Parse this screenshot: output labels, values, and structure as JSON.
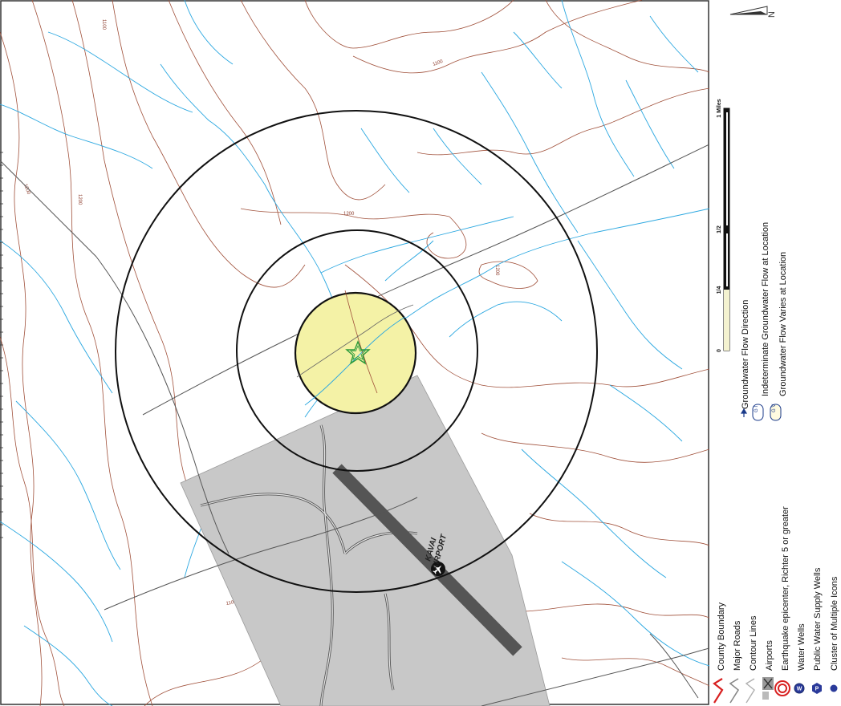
{
  "map": {
    "airport_label_line1": "KAVAI",
    "airport_label_line2": "AIRPORT",
    "contour_labels": [
      "1100",
      "1100",
      "1200",
      "1200",
      "1200",
      "1200",
      "1100"
    ],
    "colors": {
      "contour": "#a0503a",
      "stream": "#2aa7e0",
      "road": "#555555",
      "airport_fill": "#c8c8c8",
      "runway": "#555555",
      "site_fill": "#f4f2a6",
      "ring": "#111111",
      "site_star": "#2a9a3a"
    },
    "icons": [
      "north-arrow-icon",
      "airport-icon",
      "site-star-icon"
    ]
  },
  "scale_bar": {
    "ticks": [
      "0",
      "1/4",
      "1/2",
      "1 Miles"
    ],
    "fractions": [
      0,
      0.25,
      0.5,
      1
    ]
  },
  "flow_legend": {
    "items": [
      {
        "symbol": "",
        "label": "Groundwater Flow Direction",
        "icon": "flow-arrow-icon"
      },
      {
        "symbol": "G I",
        "label": "Indeterminate Groundwater Flow at Location",
        "icon": "indeterminate-flow-icon"
      },
      {
        "symbol": "G V",
        "label": "Groundwater Flow Varies at Location",
        "icon": "varies-flow-icon"
      }
    ]
  },
  "legend": {
    "items": [
      {
        "label": "County Boundary",
        "icon": "county-boundary-icon"
      },
      {
        "label": "Major Roads",
        "icon": "major-roads-icon"
      },
      {
        "label": "Contour Lines",
        "icon": "contour-lines-icon"
      },
      {
        "label": "Airports",
        "icon": "airports-icon"
      },
      {
        "label": "Earthquake epicenter, Richter 5 or greater",
        "icon": "earthquake-icon"
      },
      {
        "label": "Water Wells",
        "icon": "water-well-icon"
      },
      {
        "label": "Public Water Supply Wells",
        "icon": "public-well-icon"
      },
      {
        "label": "Cluster of Multiple Icons",
        "icon": "cluster-icon"
      }
    ]
  }
}
